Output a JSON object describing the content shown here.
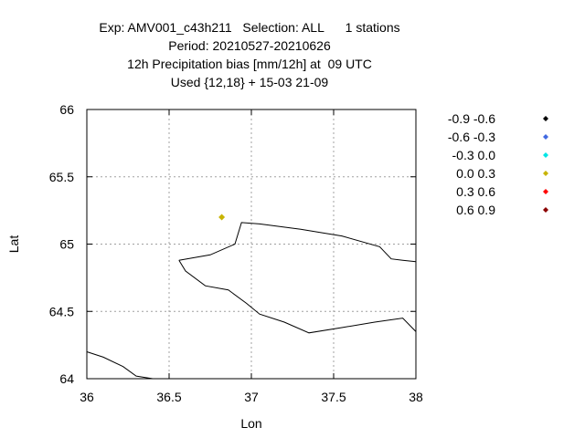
{
  "title": {
    "line1": "Exp: AMV001_c43h211   Selection: ALL      1 stations",
    "line2": "Period: 20210527-20210626",
    "line3": "12h Precipitation bias [mm/12h] at  09 UTC",
    "line4": "Used {12,18} + 15-03 21-09"
  },
  "chart_data": {
    "type": "scatter",
    "xlabel": "Lon",
    "ylabel": "Lat",
    "xlim": [
      36,
      38
    ],
    "ylim": [
      64,
      66
    ],
    "xticks": [
      "36",
      "36.5",
      "37",
      "37.5",
      "38"
    ],
    "yticks": [
      "64",
      "64.5",
      "65",
      "65.5",
      "66"
    ],
    "grid": true,
    "legend_position": "right",
    "legend": [
      {
        "label": "-0.9 -0.6",
        "color": "#000000"
      },
      {
        "label": "-0.6 -0.3",
        "color": "#4169e1"
      },
      {
        "label": "-0.3 0.0",
        "color": "#00e5e5"
      },
      {
        "label": "0.0 0.3",
        "color": "#c8b400"
      },
      {
        "label": "0.3 0.6",
        "color": "#ff0000"
      },
      {
        "label": "0.6 0.9",
        "color": "#8b0000"
      }
    ],
    "points": [
      {
        "lon": 36.82,
        "lat": 65.2,
        "color": "#c8b400"
      }
    ],
    "coastlines": [
      [
        [
          36.56,
          64.88
        ],
        [
          36.6,
          64.8
        ],
        [
          36.72,
          64.69
        ],
        [
          36.86,
          64.66
        ],
        [
          36.97,
          64.56
        ],
        [
          37.05,
          64.48
        ],
        [
          37.2,
          64.42
        ],
        [
          37.35,
          64.34
        ],
        [
          37.55,
          64.38
        ],
        [
          37.75,
          64.42
        ],
        [
          37.92,
          64.45
        ],
        [
          38.0,
          64.35
        ]
      ],
      [
        [
          36.56,
          64.88
        ],
        [
          36.75,
          64.92
        ],
        [
          36.9,
          65.0
        ],
        [
          36.94,
          65.16
        ],
        [
          37.05,
          65.15
        ],
        [
          37.3,
          65.11
        ],
        [
          37.55,
          65.06
        ],
        [
          37.78,
          64.98
        ],
        [
          37.85,
          64.89
        ],
        [
          37.92,
          64.88
        ],
        [
          38.0,
          64.87
        ]
      ],
      [
        [
          36.0,
          64.2
        ],
        [
          36.1,
          64.16
        ],
        [
          36.22,
          64.09
        ],
        [
          36.3,
          64.02
        ],
        [
          36.4,
          64.0
        ]
      ]
    ]
  }
}
